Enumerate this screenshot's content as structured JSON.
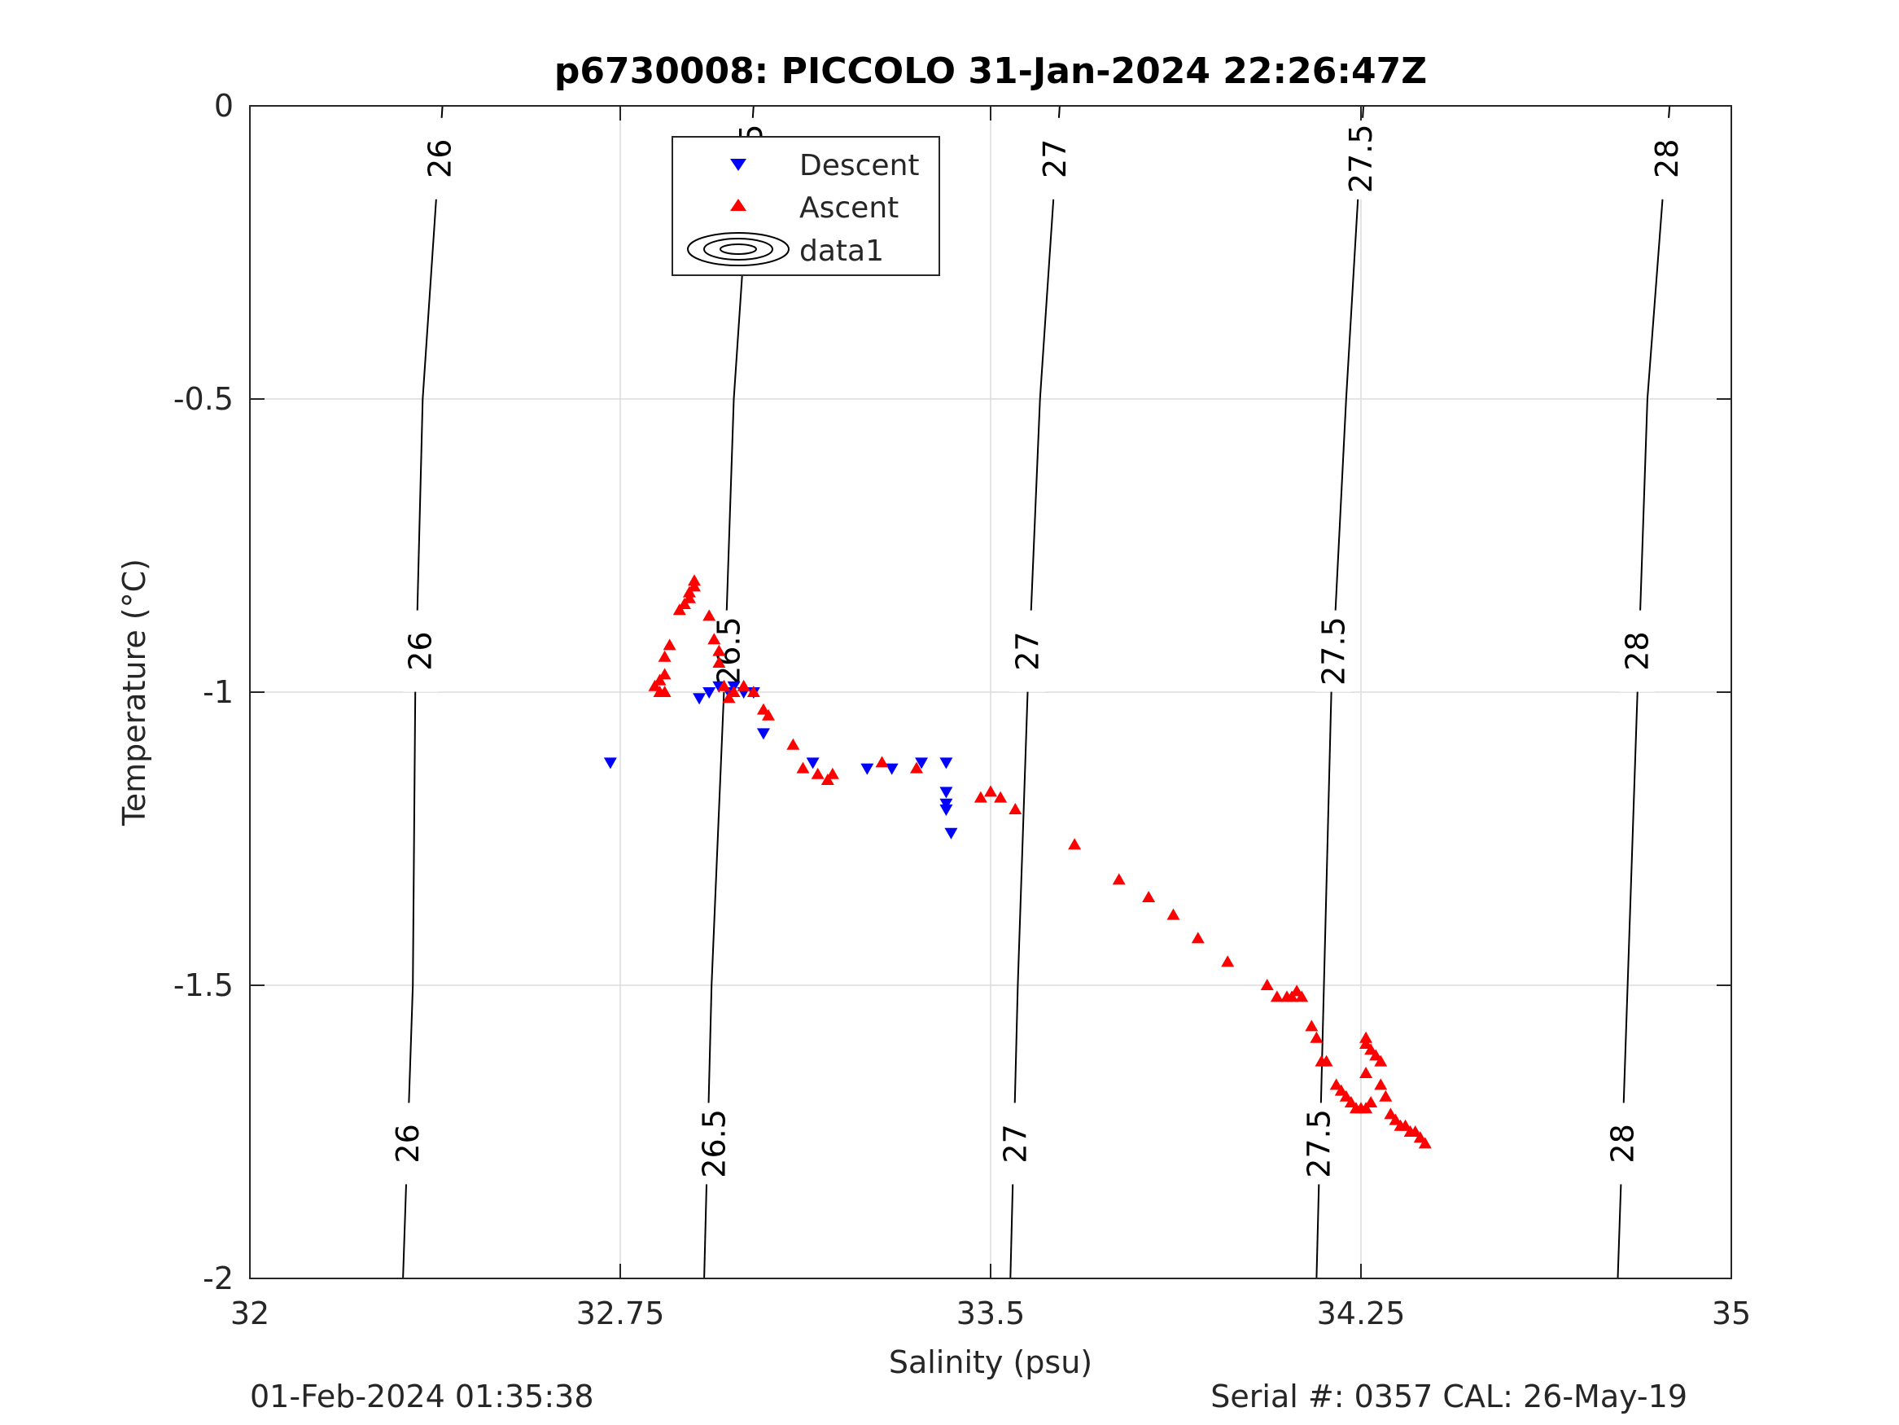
{
  "chart_data": {
    "type": "scatter",
    "title": "p6730008: PICCOLO 31-Jan-2024 22:26:47Z",
    "xlabel": "Salinity (psu)",
    "ylabel": "Temperature (°C)",
    "xlim": [
      32,
      35
    ],
    "ylim": [
      -2,
      0
    ],
    "x_ticks": [
      32,
      32.75,
      33.5,
      34.25,
      35
    ],
    "x_tick_labels": [
      "32",
      "32.75",
      "33.5",
      "34.25",
      "35"
    ],
    "y_ticks": [
      0,
      -0.5,
      -1,
      -1.5,
      -2
    ],
    "y_tick_labels": [
      "0",
      "-0.5",
      "-1",
      "-1.5",
      "-2"
    ],
    "grid": true,
    "legend_position": "top-center",
    "footer_left": "01-Feb-2024 01:35:38",
    "footer_right": "Serial #: 0357  CAL: 26-May-19",
    "series": [
      {
        "name": "Descent",
        "marker": "triangle-down",
        "color": "#0000ff",
        "points": [
          [
            32.73,
            -1.12
          ],
          [
            32.91,
            -1.01
          ],
          [
            32.93,
            -1.0
          ],
          [
            32.95,
            -0.99
          ],
          [
            32.97,
            -1.0
          ],
          [
            32.98,
            -0.99
          ],
          [
            33.0,
            -1.0
          ],
          [
            33.02,
            -1.0
          ],
          [
            33.04,
            -1.07
          ],
          [
            33.14,
            -1.12
          ],
          [
            33.25,
            -1.13
          ],
          [
            33.3,
            -1.13
          ],
          [
            33.36,
            -1.12
          ],
          [
            33.41,
            -1.12
          ],
          [
            33.41,
            -1.17
          ],
          [
            33.41,
            -1.19
          ],
          [
            33.41,
            -1.2
          ],
          [
            33.42,
            -1.24
          ]
        ]
      },
      {
        "name": "Ascent",
        "marker": "triangle-up",
        "color": "#ff0000",
        "points": [
          [
            32.82,
            -0.99
          ],
          [
            32.83,
            -0.98
          ],
          [
            32.83,
            -1.0
          ],
          [
            32.84,
            -0.97
          ],
          [
            32.84,
            -1.0
          ],
          [
            32.84,
            -0.94
          ],
          [
            32.85,
            -0.92
          ],
          [
            32.87,
            -0.86
          ],
          [
            32.88,
            -0.85
          ],
          [
            32.89,
            -0.84
          ],
          [
            32.89,
            -0.83
          ],
          [
            32.9,
            -0.82
          ],
          [
            32.9,
            -0.81
          ],
          [
            32.93,
            -0.87
          ],
          [
            32.94,
            -0.91
          ],
          [
            32.95,
            -0.93
          ],
          [
            32.95,
            -0.95
          ],
          [
            32.96,
            -0.99
          ],
          [
            32.97,
            -1.01
          ],
          [
            32.98,
            -1.0
          ],
          [
            33.0,
            -0.99
          ],
          [
            33.02,
            -1.0
          ],
          [
            33.04,
            -1.03
          ],
          [
            33.05,
            -1.04
          ],
          [
            33.1,
            -1.09
          ],
          [
            33.12,
            -1.13
          ],
          [
            33.15,
            -1.14
          ],
          [
            33.17,
            -1.15
          ],
          [
            33.18,
            -1.14
          ],
          [
            33.28,
            -1.12
          ],
          [
            33.35,
            -1.13
          ],
          [
            33.48,
            -1.18
          ],
          [
            33.5,
            -1.17
          ],
          [
            33.52,
            -1.18
          ],
          [
            33.55,
            -1.2
          ],
          [
            33.67,
            -1.26
          ],
          [
            33.76,
            -1.32
          ],
          [
            33.82,
            -1.35
          ],
          [
            33.87,
            -1.38
          ],
          [
            33.92,
            -1.42
          ],
          [
            33.98,
            -1.46
          ],
          [
            34.06,
            -1.5
          ],
          [
            34.08,
            -1.52
          ],
          [
            34.1,
            -1.52
          ],
          [
            34.11,
            -1.52
          ],
          [
            34.12,
            -1.51
          ],
          [
            34.13,
            -1.52
          ],
          [
            34.15,
            -1.57
          ],
          [
            34.16,
            -1.59
          ],
          [
            34.17,
            -1.63
          ],
          [
            34.18,
            -1.63
          ],
          [
            34.2,
            -1.67
          ],
          [
            34.21,
            -1.68
          ],
          [
            34.22,
            -1.69
          ],
          [
            34.23,
            -1.7
          ],
          [
            34.24,
            -1.71
          ],
          [
            34.25,
            -1.71
          ],
          [
            34.26,
            -1.71
          ],
          [
            34.27,
            -1.7
          ],
          [
            34.26,
            -1.65
          ],
          [
            34.26,
            -1.59
          ],
          [
            34.26,
            -1.6
          ],
          [
            34.27,
            -1.61
          ],
          [
            34.28,
            -1.62
          ],
          [
            34.29,
            -1.63
          ],
          [
            34.29,
            -1.67
          ],
          [
            34.3,
            -1.69
          ],
          [
            34.31,
            -1.72
          ],
          [
            34.32,
            -1.73
          ],
          [
            34.33,
            -1.74
          ],
          [
            34.34,
            -1.74
          ],
          [
            34.35,
            -1.75
          ],
          [
            34.36,
            -1.75
          ],
          [
            34.37,
            -1.76
          ],
          [
            34.38,
            -1.77
          ]
        ]
      }
    ],
    "contour_series_name": "data1",
    "contours": [
      {
        "level": "26",
        "path": [
          [
            32.31,
            -2
          ],
          [
            32.33,
            -1.5
          ],
          [
            32.335,
            -1.0
          ],
          [
            32.35,
            -0.5
          ],
          [
            32.39,
            0
          ]
        ],
        "labels": [
          [
            32.32,
            -1.77
          ],
          [
            32.345,
            -0.93
          ],
          [
            32.385,
            -0.09
          ]
        ]
      },
      {
        "level": "26.5",
        "path": [
          [
            32.92,
            -2
          ],
          [
            32.935,
            -1.5
          ],
          [
            32.96,
            -1.0
          ],
          [
            32.98,
            -0.5
          ],
          [
            33.02,
            0
          ]
        ],
        "labels": [
          [
            32.94,
            -1.77
          ],
          [
            32.97,
            -0.93
          ],
          [
            33.015,
            -0.09
          ]
        ]
      },
      {
        "level": "27",
        "path": [
          [
            33.54,
            -2
          ],
          [
            33.555,
            -1.5
          ],
          [
            33.575,
            -1.0
          ],
          [
            33.6,
            -0.5
          ],
          [
            33.64,
            0
          ]
        ],
        "labels": [
          [
            33.55,
            -1.77
          ],
          [
            33.575,
            -0.93
          ],
          [
            33.63,
            -0.09
          ]
        ]
      },
      {
        "level": "27.5",
        "path": [
          [
            34.16,
            -2
          ],
          [
            34.175,
            -1.5
          ],
          [
            34.19,
            -1.0
          ],
          [
            34.22,
            -0.5
          ],
          [
            34.255,
            0
          ]
        ],
        "labels": [
          [
            34.165,
            -1.77
          ],
          [
            34.195,
            -0.93
          ],
          [
            34.25,
            -0.09
          ]
        ]
      },
      {
        "level": "28",
        "path": [
          [
            34.77,
            -2
          ],
          [
            34.79,
            -1.5
          ],
          [
            34.81,
            -1.0
          ],
          [
            34.83,
            -0.5
          ],
          [
            34.875,
            0
          ]
        ],
        "labels": [
          [
            34.78,
            -1.77
          ],
          [
            34.81,
            -0.93
          ],
          [
            34.87,
            -0.09
          ]
        ]
      }
    ]
  }
}
